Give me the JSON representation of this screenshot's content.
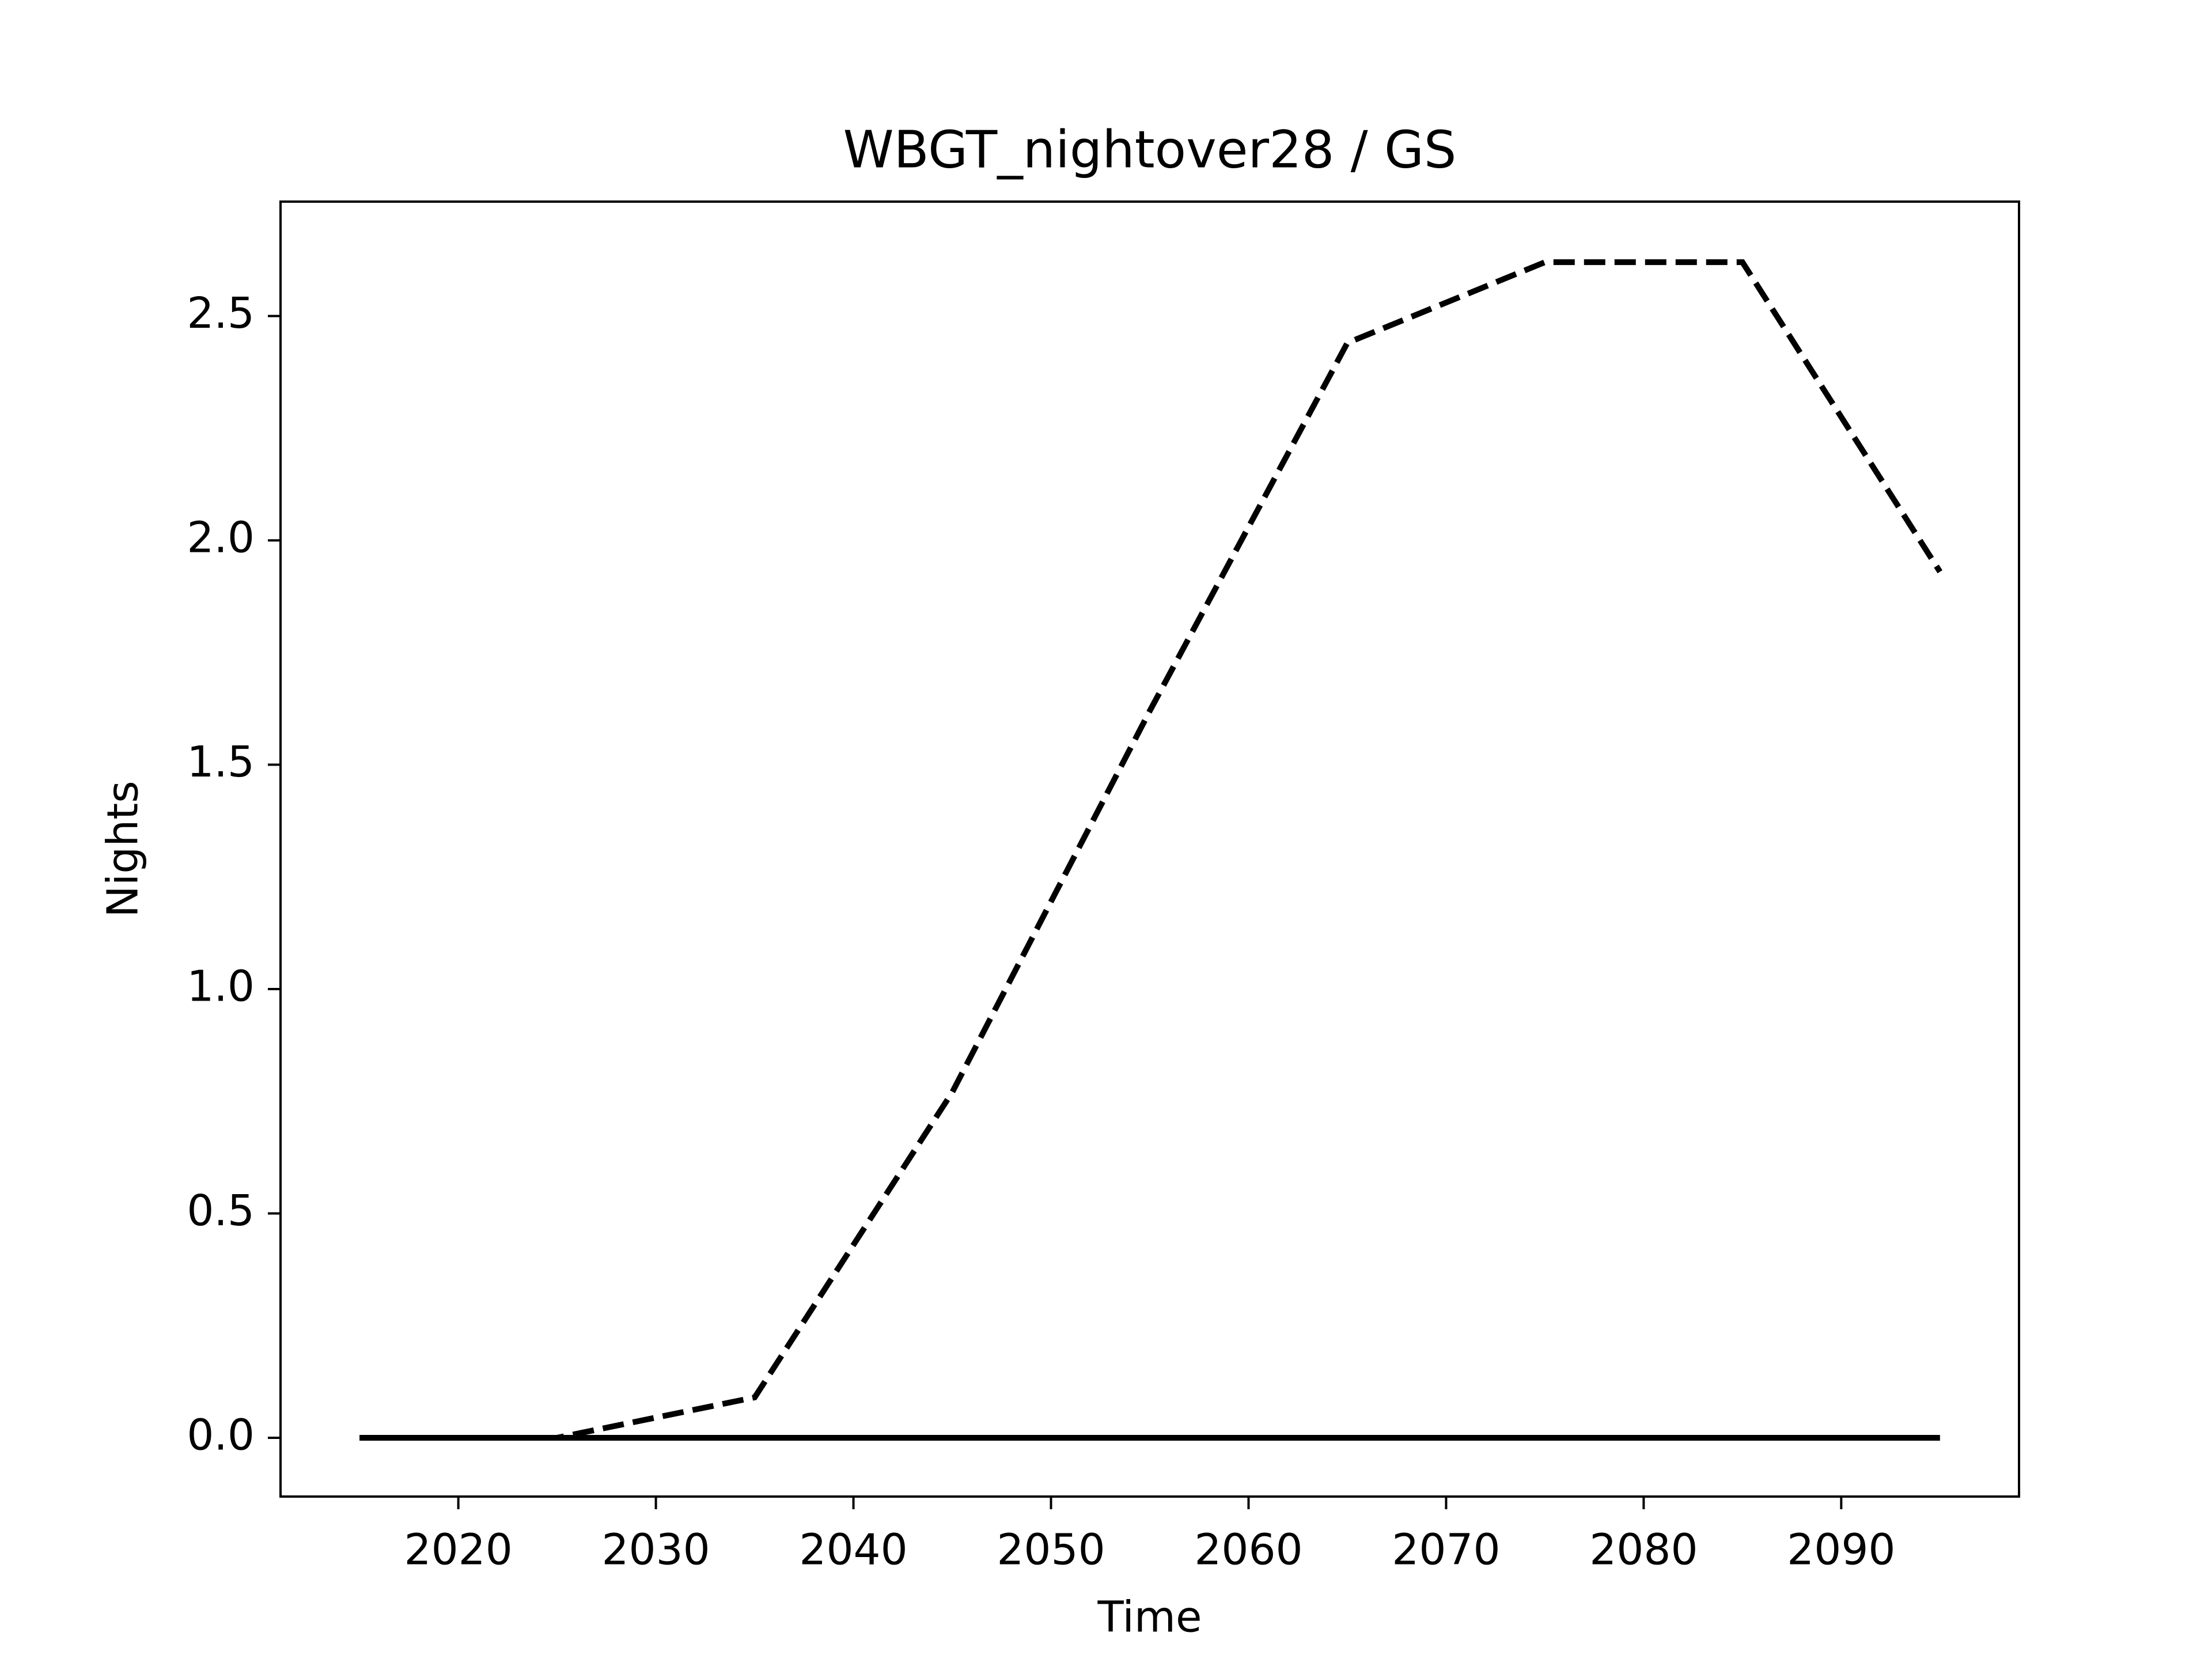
{
  "chart_data": {
    "type": "line",
    "title": "WBGT_nightover28 / GS",
    "x_label": "Time",
    "y_label": "Nights",
    "x": [
      2015,
      2025,
      2035,
      2045,
      2055,
      2065,
      2075,
      2085,
      2095
    ],
    "series": [
      {
        "color": "#000000",
        "dash": "dashed",
        "values": [
          0,
          0,
          0.09,
          0.77,
          1.62,
          2.44,
          2.62,
          2.62,
          1.93
        ]
      },
      {
        "color": "#000000",
        "dash": "solid",
        "values": [
          0,
          0,
          0,
          0,
          0,
          0,
          0,
          0,
          0
        ]
      }
    ],
    "xlim": [
      2011,
      2099
    ],
    "ylim": [
      -0.131,
      2.755
    ],
    "xticks": [
      2020,
      2030,
      2040,
      2050,
      2060,
      2070,
      2080,
      2090
    ],
    "yticks": [
      {
        "value": 0,
        "label": "0.0"
      },
      0.5,
      {
        "value": 1,
        "label": "1.0"
      },
      1.5,
      {
        "value": 2,
        "label": "2.0"
      },
      2.5
    ],
    "grid": false
  }
}
